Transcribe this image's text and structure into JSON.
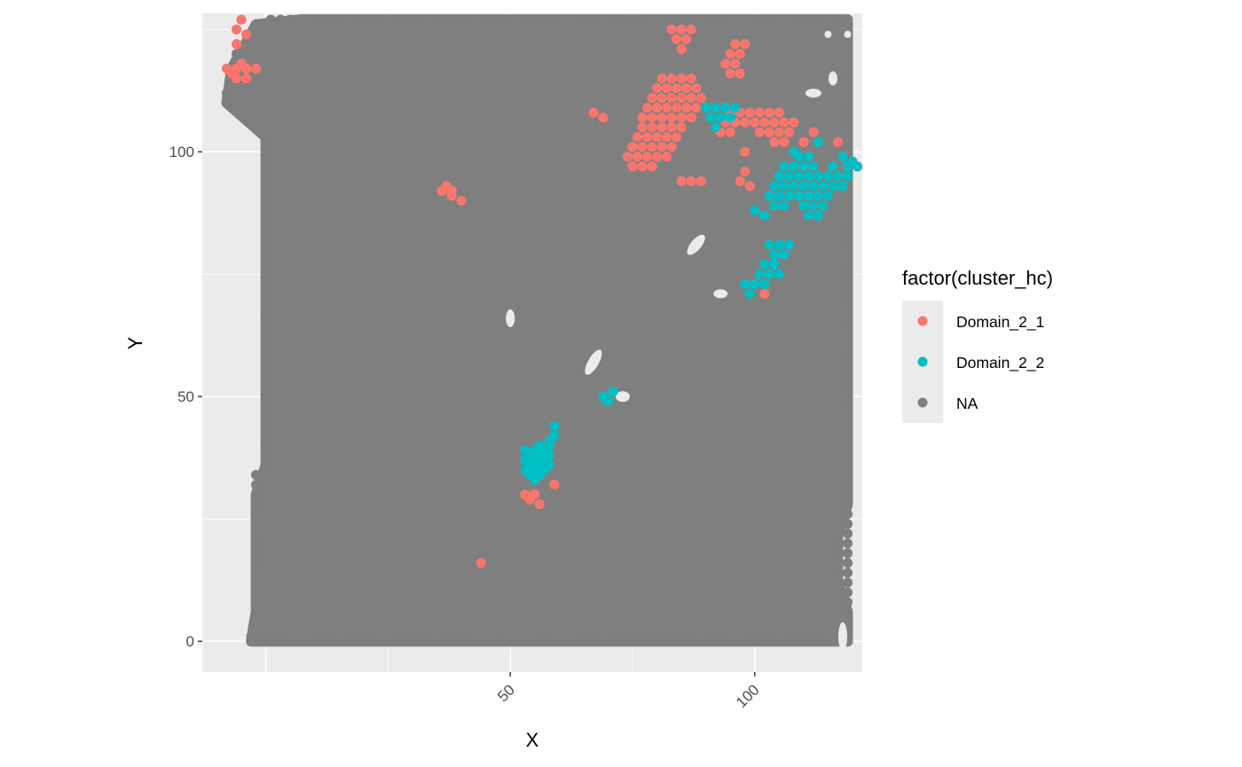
{
  "chart_data": {
    "type": "scatter",
    "xlabel": "X",
    "ylabel": "Y",
    "xlim": [
      -13,
      122
    ],
    "ylim": [
      -6.3,
      128.3
    ],
    "x_ticks": [
      50,
      100
    ],
    "y_ticks": [
      0,
      50,
      100
    ],
    "x_tick_labels": [
      "50",
      "100"
    ],
    "y_tick_labels": [
      "0",
      "50",
      "100"
    ],
    "x_tick_label_rotation": -45,
    "grid": true,
    "legend": {
      "title": "factor(cluster_hc)",
      "position": "right",
      "entries": [
        {
          "label": "Domain_2_1",
          "color": "#F8766D"
        },
        {
          "label": "Domain_2_2",
          "color": "#00BFC4"
        },
        {
          "label": "NA",
          "color": "#7F7F7F"
        }
      ]
    },
    "colors": {
      "panel_background": "#EBEBEB",
      "grid": "#FFFFFF",
      "Domain_2_1": "#F8766D",
      "Domain_2_2": "#00BFC4",
      "NA": "#7F7F7F"
    },
    "grid_extent": {
      "x": [
        1,
        119
      ],
      "y": [
        0,
        127
      ]
    },
    "tissue_outline": [
      [
        1,
        0
      ],
      [
        119,
        0
      ],
      [
        119,
        6
      ],
      [
        117,
        12
      ],
      [
        117,
        22
      ],
      [
        119,
        28
      ],
      [
        119,
        127
      ],
      [
        7,
        127
      ],
      [
        -2,
        126
      ],
      [
        -7,
        117
      ],
      [
        -8,
        110
      ],
      [
        0,
        103
      ],
      [
        0,
        36
      ],
      [
        -2,
        30
      ],
      [
        -2,
        6
      ],
      [
        -3,
        0
      ]
    ],
    "series": [
      {
        "name": "Domain_2_1",
        "points": [
          [
            -5,
            127
          ],
          [
            -6,
            125
          ],
          [
            -4,
            124
          ],
          [
            -6,
            122
          ],
          [
            -8,
            117
          ],
          [
            -6,
            117
          ],
          [
            -4,
            117
          ],
          [
            -2,
            117
          ],
          [
            -6,
            115
          ],
          [
            -4,
            115
          ],
          [
            -7,
            116
          ],
          [
            -5,
            118
          ],
          [
            83,
            125
          ],
          [
            85,
            125
          ],
          [
            87,
            125
          ],
          [
            84,
            123
          ],
          [
            86,
            123
          ],
          [
            85,
            121
          ],
          [
            96,
            122
          ],
          [
            98,
            122
          ],
          [
            95,
            120
          ],
          [
            97,
            120
          ],
          [
            94,
            118
          ],
          [
            96,
            118
          ],
          [
            95,
            116
          ],
          [
            97,
            116
          ],
          [
            81,
            115
          ],
          [
            83,
            115
          ],
          [
            85,
            115
          ],
          [
            87,
            115
          ],
          [
            80,
            113
          ],
          [
            82,
            113
          ],
          [
            84,
            113
          ],
          [
            86,
            113
          ],
          [
            88,
            113
          ],
          [
            79,
            111
          ],
          [
            81,
            111
          ],
          [
            83,
            111
          ],
          [
            85,
            111
          ],
          [
            87,
            111
          ],
          [
            89,
            111
          ],
          [
            78,
            109
          ],
          [
            80,
            109
          ],
          [
            82,
            109
          ],
          [
            84,
            109
          ],
          [
            86,
            109
          ],
          [
            88,
            109
          ],
          [
            77,
            107
          ],
          [
            79,
            107
          ],
          [
            81,
            107
          ],
          [
            83,
            107
          ],
          [
            85,
            107
          ],
          [
            87,
            107
          ],
          [
            77,
            105
          ],
          [
            79,
            105
          ],
          [
            81,
            105
          ],
          [
            83,
            105
          ],
          [
            85,
            105
          ],
          [
            76,
            103
          ],
          [
            78,
            103
          ],
          [
            80,
            103
          ],
          [
            82,
            103
          ],
          [
            84,
            103
          ],
          [
            75,
            101
          ],
          [
            77,
            101
          ],
          [
            79,
            101
          ],
          [
            81,
            101
          ],
          [
            83,
            101
          ],
          [
            74,
            99
          ],
          [
            76,
            99
          ],
          [
            78,
            99
          ],
          [
            80,
            99
          ],
          [
            82,
            99
          ],
          [
            75,
            97
          ],
          [
            77,
            97
          ],
          [
            79,
            97
          ],
          [
            85,
            94
          ],
          [
            87,
            94
          ],
          [
            89,
            94
          ],
          [
            95,
            108
          ],
          [
            97,
            108
          ],
          [
            99,
            108
          ],
          [
            101,
            108
          ],
          [
            103,
            108
          ],
          [
            105,
            108
          ],
          [
            94,
            106
          ],
          [
            96,
            106
          ],
          [
            98,
            106
          ],
          [
            100,
            106
          ],
          [
            102,
            106
          ],
          [
            104,
            106
          ],
          [
            106,
            106
          ],
          [
            108,
            106
          ],
          [
            93,
            104
          ],
          [
            95,
            104
          ],
          [
            101,
            104
          ],
          [
            103,
            104
          ],
          [
            105,
            104
          ],
          [
            107,
            104
          ],
          [
            104,
            102
          ],
          [
            106,
            102
          ],
          [
            98,
            100
          ],
          [
            67,
            108
          ],
          [
            69,
            107
          ],
          [
            98,
            96
          ],
          [
            97,
            94
          ],
          [
            99,
            93
          ],
          [
            110,
            102
          ],
          [
            112,
            104
          ],
          [
            117,
            102
          ],
          [
            36,
            92
          ],
          [
            38,
            92
          ],
          [
            37,
            93
          ],
          [
            38,
            91
          ],
          [
            40,
            90
          ],
          [
            102,
            71
          ],
          [
            59,
            32
          ],
          [
            53,
            30
          ],
          [
            55,
            30
          ],
          [
            54,
            29
          ],
          [
            56,
            28
          ],
          [
            44,
            16
          ]
        ]
      },
      {
        "name": "Domain_2_2",
        "points": [
          [
            90,
            109
          ],
          [
            92,
            109
          ],
          [
            94,
            109
          ],
          [
            96,
            109
          ],
          [
            91,
            107
          ],
          [
            93,
            107
          ],
          [
            95,
            107
          ],
          [
            92,
            105
          ],
          [
            113,
            102
          ],
          [
            106,
            97
          ],
          [
            108,
            97
          ],
          [
            110,
            97
          ],
          [
            112,
            97
          ],
          [
            105,
            95
          ],
          [
            107,
            95
          ],
          [
            109,
            95
          ],
          [
            111,
            95
          ],
          [
            113,
            95
          ],
          [
            115,
            95
          ],
          [
            117,
            95
          ],
          [
            119,
            95
          ],
          [
            104,
            93
          ],
          [
            106,
            93
          ],
          [
            108,
            93
          ],
          [
            110,
            93
          ],
          [
            112,
            93
          ],
          [
            114,
            93
          ],
          [
            116,
            93
          ],
          [
            118,
            93
          ],
          [
            103,
            91
          ],
          [
            105,
            91
          ],
          [
            107,
            91
          ],
          [
            109,
            91
          ],
          [
            111,
            91
          ],
          [
            113,
            91
          ],
          [
            115,
            91
          ],
          [
            104,
            89
          ],
          [
            106,
            89
          ],
          [
            110,
            89
          ],
          [
            112,
            89
          ],
          [
            114,
            89
          ],
          [
            111,
            87
          ],
          [
            113,
            87
          ],
          [
            102,
            87
          ],
          [
            100,
            88
          ],
          [
            121,
            97
          ],
          [
            123,
            97
          ],
          [
            119,
            97
          ],
          [
            118,
            99
          ],
          [
            120,
            98
          ],
          [
            116,
            97
          ],
          [
            109,
            99
          ],
          [
            111,
            99
          ],
          [
            108,
            100
          ],
          [
            103,
            81
          ],
          [
            105,
            81
          ],
          [
            107,
            81
          ],
          [
            104,
            79
          ],
          [
            106,
            79
          ],
          [
            102,
            77
          ],
          [
            104,
            77
          ],
          [
            101,
            75
          ],
          [
            103,
            75
          ],
          [
            105,
            75
          ],
          [
            98,
            73
          ],
          [
            100,
            73
          ],
          [
            102,
            73
          ],
          [
            99,
            71
          ],
          [
            71,
            51
          ],
          [
            69,
            50
          ],
          [
            70,
            49
          ],
          [
            59,
            44
          ],
          [
            59,
            42
          ],
          [
            58,
            41
          ],
          [
            56,
            40
          ],
          [
            58,
            40
          ],
          [
            53,
            39
          ],
          [
            55,
            39
          ],
          [
            57,
            39
          ],
          [
            54,
            38
          ],
          [
            56,
            38
          ],
          [
            58,
            38
          ],
          [
            53,
            37
          ],
          [
            55,
            37
          ],
          [
            57,
            37
          ],
          [
            54,
            36
          ],
          [
            56,
            36
          ],
          [
            58,
            36
          ],
          [
            53,
            35
          ],
          [
            55,
            35
          ],
          [
            57,
            35
          ],
          [
            54,
            34
          ],
          [
            56,
            34
          ],
          [
            55,
            33
          ]
        ]
      }
    ]
  }
}
